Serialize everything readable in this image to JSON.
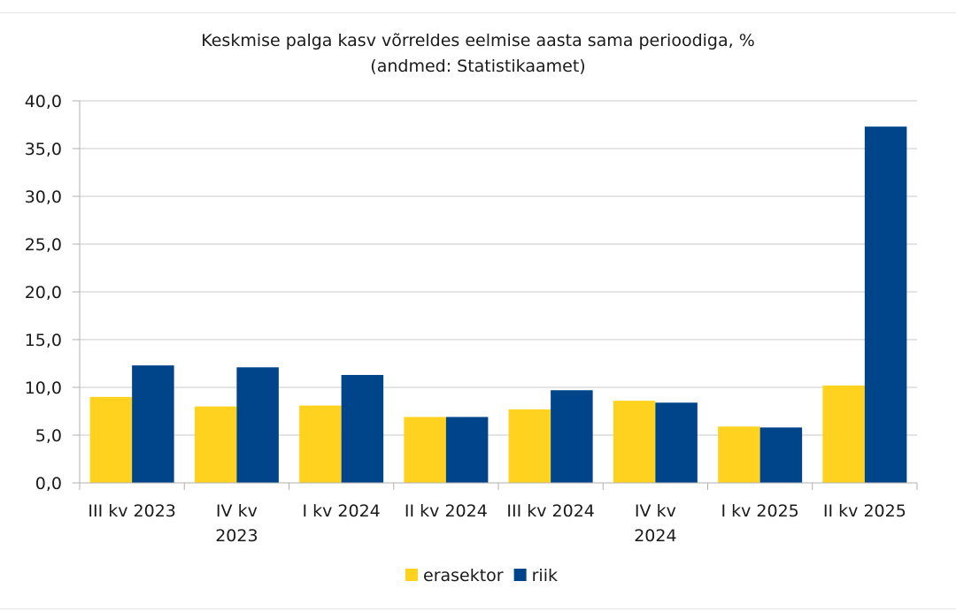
{
  "chart_data": {
    "type": "bar",
    "title": "Keskmise palga kasv võrreldes eelmise aasta sama perioodiga, %",
    "subtitle": "(andmed: Statistikaamet)",
    "categories": [
      [
        "III kv 2023"
      ],
      [
        "IV kv",
        "2023"
      ],
      [
        "I kv 2024"
      ],
      [
        "II kv 2024"
      ],
      [
        "III kv 2024"
      ],
      [
        "IV kv",
        "2024"
      ],
      [
        "I kv 2025"
      ],
      [
        "II kv 2025"
      ]
    ],
    "series": [
      {
        "name": "erasektor",
        "color": "#FFD21F",
        "values": [
          9.0,
          8.0,
          8.1,
          6.9,
          7.7,
          8.6,
          5.9,
          10.2
        ]
      },
      {
        "name": "riik",
        "color": "#004489",
        "values": [
          12.3,
          12.1,
          11.3,
          6.9,
          9.7,
          8.4,
          5.8,
          37.3
        ]
      }
    ],
    "ylim": [
      0,
      40
    ],
    "yticks": [
      "0,0",
      "5,0",
      "10,0",
      "15,0",
      "20,0",
      "25,0",
      "30,0",
      "35,0",
      "40,0"
    ],
    "xlabel": "",
    "ylabel": "",
    "grid": true,
    "legend": "bottom-center"
  }
}
